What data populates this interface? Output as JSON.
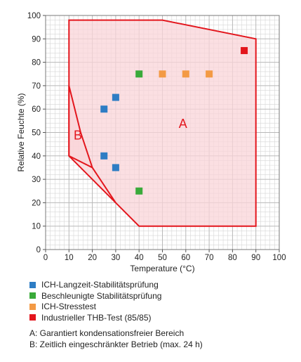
{
  "chart_data": {
    "type": "scatter",
    "title": "",
    "xlabel": "Temperature (°C)",
    "ylabel": "Relative Feuchte (%)",
    "xlim": [
      0,
      100
    ],
    "ylim": [
      0,
      100
    ],
    "xticks": [
      "0",
      "10",
      "20",
      "30",
      "40",
      "50",
      "60",
      "70",
      "80",
      "90",
      "100"
    ],
    "yticks": [
      "0",
      "10",
      "20",
      "30",
      "40",
      "50",
      "60",
      "70",
      "80",
      "90",
      "100"
    ],
    "grid": true,
    "regions": [
      {
        "name": "A",
        "label": "A",
        "label_at": [
          57,
          52
        ],
        "polygon": [
          [
            10,
            98
          ],
          [
            50,
            98
          ],
          [
            90,
            90
          ],
          [
            90,
            10
          ],
          [
            40,
            10
          ],
          [
            30,
            20
          ],
          [
            10,
            40
          ]
        ]
      },
      {
        "name": "B",
        "label": "B",
        "label_at": [
          12,
          47
        ],
        "polygon": [
          [
            10,
            70
          ],
          [
            15,
            50
          ],
          [
            20,
            35
          ],
          [
            30,
            20
          ],
          [
            20,
            35
          ],
          [
            10,
            40
          ]
        ]
      }
    ],
    "series": [
      {
        "name": "ICH-Langzeit-Stabilitätsprüfung",
        "color": "#2e7dc4",
        "points": [
          [
            25,
            60
          ],
          [
            30,
            65
          ],
          [
            25,
            40
          ],
          [
            30,
            35
          ]
        ]
      },
      {
        "name": "Beschleunigte Stabilitätsprüfung",
        "color": "#3aaa3a",
        "points": [
          [
            40,
            75
          ],
          [
            40,
            25
          ]
        ]
      },
      {
        "name": "ICH-Stresstest",
        "color": "#f39a45",
        "points": [
          [
            50,
            75
          ],
          [
            60,
            75
          ],
          [
            70,
            75
          ]
        ]
      },
      {
        "name": "Industrieller THB-Test (85/85)",
        "color": "#e3161d",
        "points": [
          [
            85,
            85
          ]
        ]
      }
    ],
    "notes": [
      "A: Garantiert kondensationsfreier Bereich",
      "B: Zeitlich eingeschränkter Betrieb (max. 24 h)"
    ],
    "colors": {
      "region_fill": "#f9d4d8",
      "region_stroke": "#e3161d",
      "grid": "#b8b8b8"
    }
  }
}
